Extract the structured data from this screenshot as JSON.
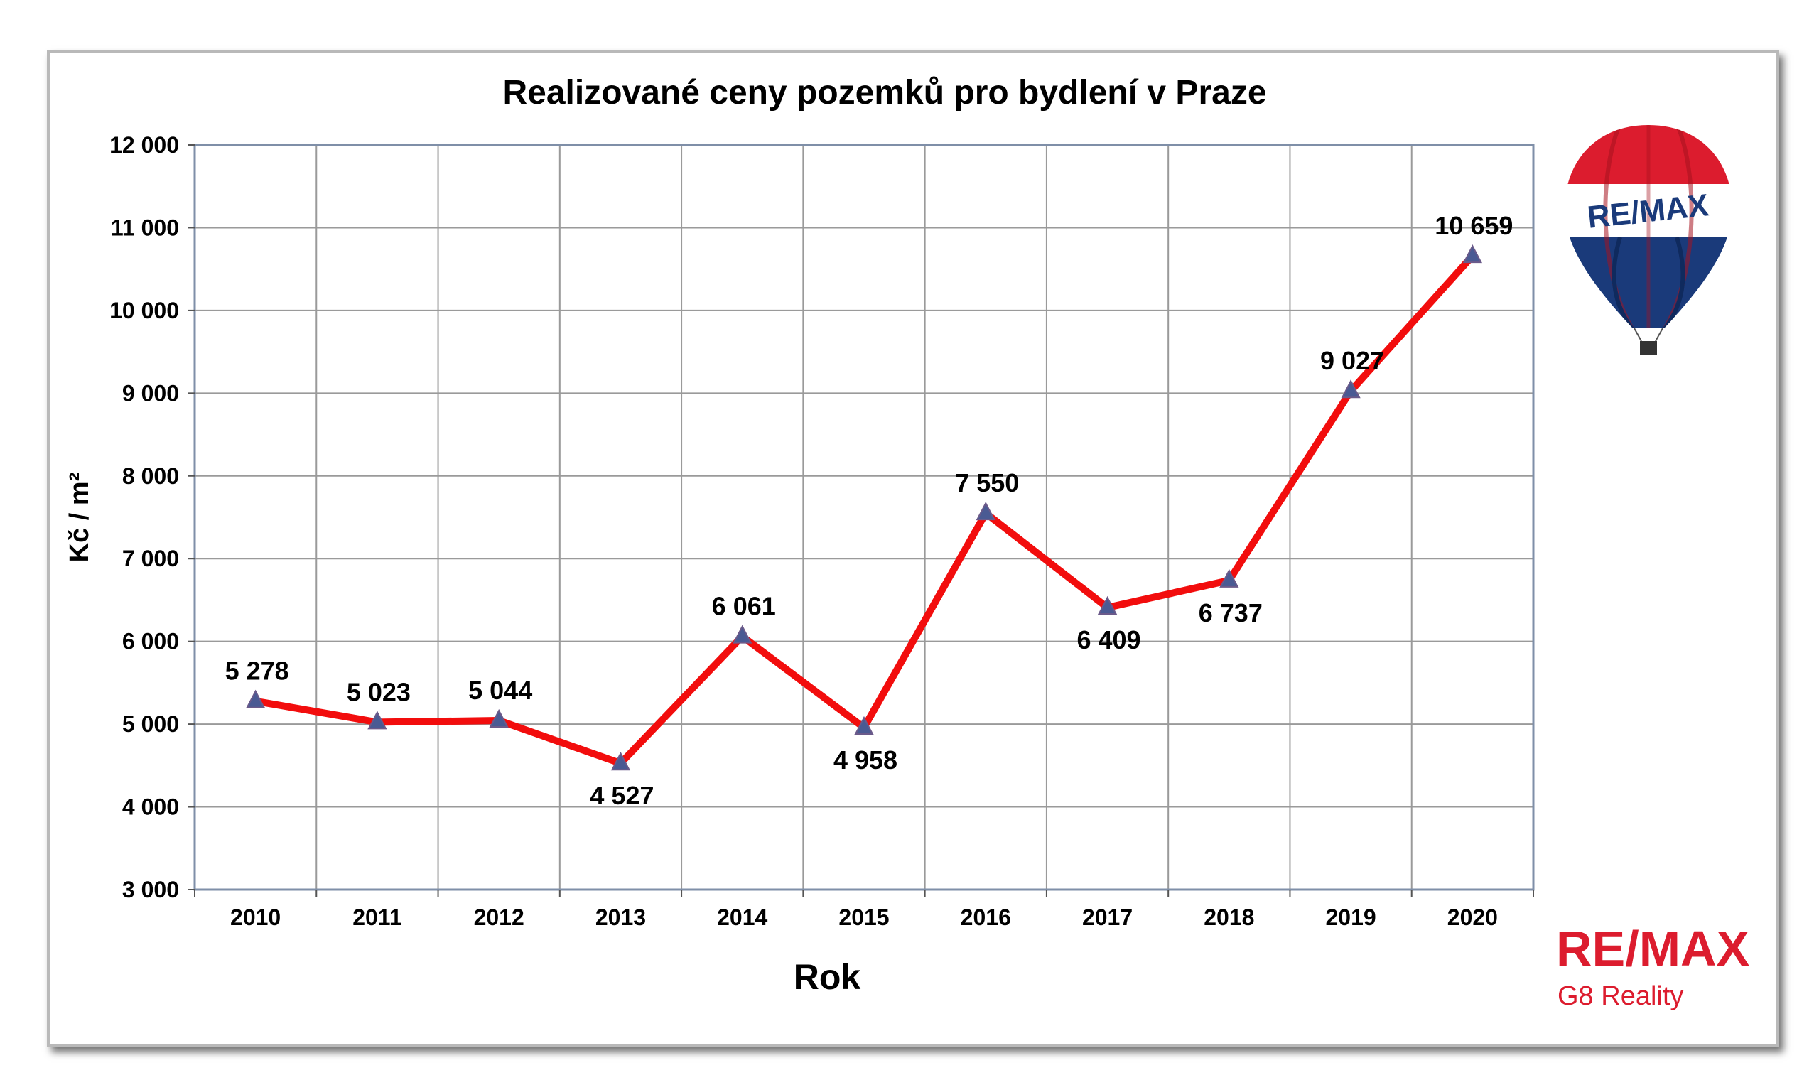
{
  "chart_data": {
    "type": "line",
    "title": "Realizované ceny pozemků pro bydlení v Praze",
    "xlabel": "Rok",
    "ylabel": "Kč / m²",
    "ylim": [
      3000,
      12000
    ],
    "yticks": [
      3000,
      4000,
      5000,
      6000,
      7000,
      8000,
      9000,
      10000,
      11000,
      12000
    ],
    "ytick_labels": [
      "3 000",
      "4 000",
      "5 000",
      "6 000",
      "7 000",
      "8 000",
      "9 000",
      "10 000",
      "11 000",
      "12 000"
    ],
    "grid": true,
    "legend": "none",
    "categories": [
      "2010",
      "2011",
      "2012",
      "2013",
      "2014",
      "2015",
      "2016",
      "2017",
      "2018",
      "2019",
      "2020"
    ],
    "series": [
      {
        "values": [
          5278,
          5023,
          5044,
          4527,
          6061,
          4958,
          7550,
          6409,
          6737,
          9027,
          10659
        ],
        "labels": [
          "5 278",
          "5 023",
          "5 044",
          "4 527",
          "6 061",
          "4 958",
          "7 550",
          "6 409",
          "6 737",
          "9 027",
          "10 659"
        ],
        "label_positions": [
          "above",
          "above",
          "above",
          "below",
          "above",
          "below",
          "above",
          "below",
          "below",
          "above",
          "above"
        ],
        "color": "#f20d0d",
        "marker_color": "#4a5a93"
      }
    ]
  },
  "colors": {
    "remax_red": "#dc1c2e",
    "remax_blue": "#003da5",
    "balloon_dark_blue": "#1a3a7a",
    "grid": "#9a9a9a",
    "axis_frame": "#7f8fa8"
  },
  "branding": {
    "balloon_logo_text": "RE/MAX",
    "wordmark": "RE/MAX",
    "office": "G8 Reality"
  }
}
